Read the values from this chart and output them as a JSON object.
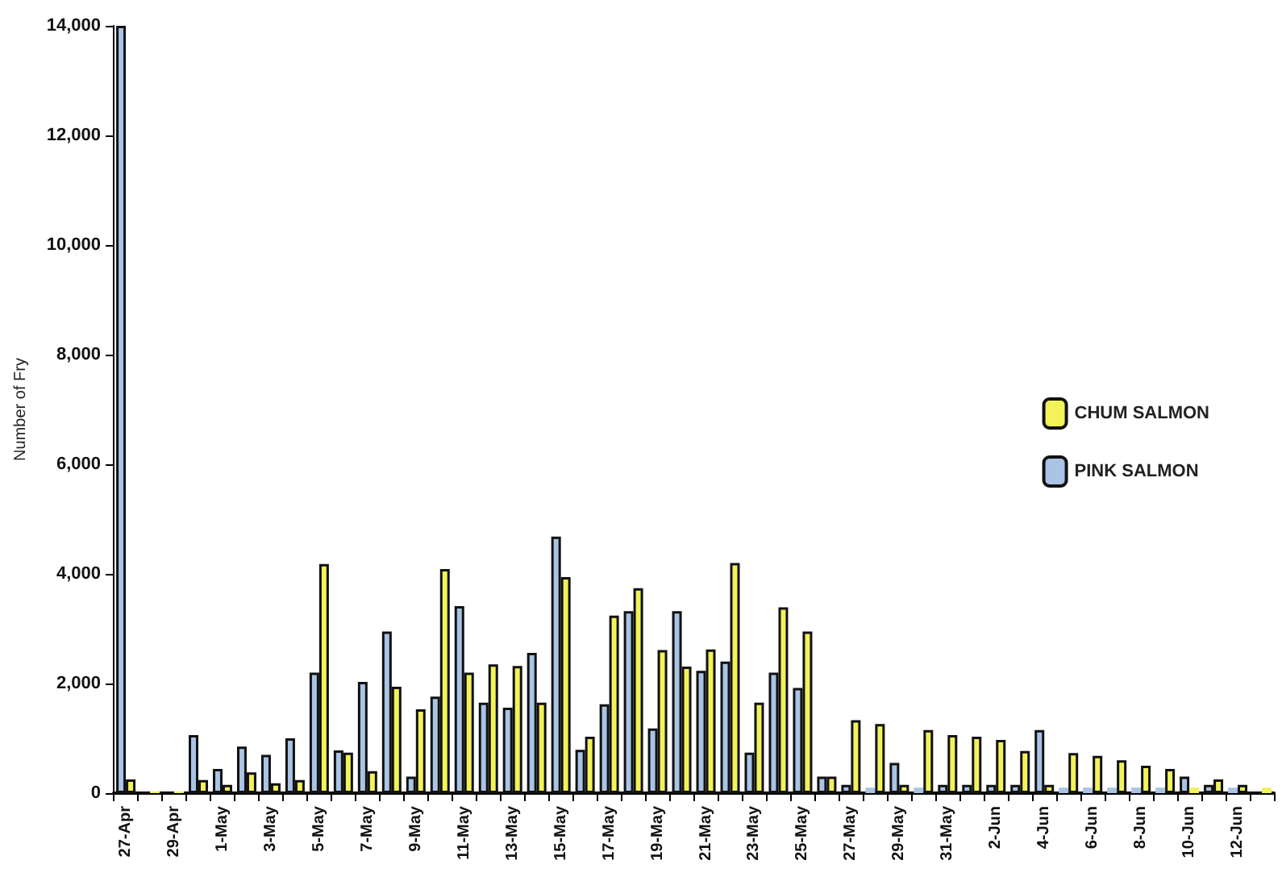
{
  "chart_data": {
    "type": "bar",
    "ylabel": "Number of Fry",
    "categories": [
      "27-Apr",
      null,
      "29-Apr",
      null,
      "1-May",
      null,
      "3-May",
      null,
      "5-May",
      null,
      "7-May",
      null,
      "9-May",
      null,
      "11-May",
      null,
      "13-May",
      null,
      "15-May",
      null,
      "17-May",
      null,
      "19-May",
      null,
      "21-May",
      null,
      "23-May",
      null,
      "25-May",
      null,
      "27-May",
      null,
      "29-May",
      null,
      "31-May",
      null,
      "2-Jun",
      null,
      "4-Jun",
      null,
      "6-Jun",
      null,
      "8-Jun",
      null,
      "10-Jun",
      null,
      "12-Jun",
      null
    ],
    "series": [
      {
        "name": "PINK SALMON",
        "color": "#a9c4e4",
        "values": [
          14000,
          null,
          null,
          1060,
          440,
          850,
          700,
          1000,
          2200,
          780,
          2030,
          2950,
          300,
          1760,
          3410,
          1650,
          1560,
          2560,
          4680,
          790,
          1620,
          3320,
          1180,
          3320,
          2230,
          2400,
          740,
          2200,
          1920,
          300,
          150,
          100,
          550,
          100,
          150,
          150,
          150,
          150,
          1150,
          100,
          100,
          100,
          100,
          100,
          300,
          150,
          100,
          null
        ]
      },
      {
        "name": "CHUM SALMON",
        "color": "#f2f25a",
        "values": [
          250,
          30,
          30,
          240,
          150,
          380,
          180,
          240,
          4180,
          740,
          400,
          1940,
          1530,
          4090,
          2200,
          2350,
          2320,
          1650,
          3940,
          1030,
          3240,
          3740,
          2610,
          2310,
          2620,
          4200,
          1650,
          3390,
          2950,
          300,
          1330,
          1260,
          150,
          1150,
          1060,
          1030,
          970,
          770,
          150,
          730,
          680,
          600,
          500,
          440,
          100,
          250,
          150,
          100
        ]
      }
    ],
    "ylim": [
      0,
      14000
    ],
    "yticks": [
      {
        "value": 0,
        "label": "0"
      },
      {
        "value": 2000,
        "label": "2,000"
      },
      {
        "value": 4000,
        "label": "4,000"
      },
      {
        "value": 6000,
        "label": "6,000"
      },
      {
        "value": 8000,
        "label": "8,000"
      },
      {
        "value": 10000,
        "label": "10,000"
      },
      {
        "value": 12000,
        "label": "12,000"
      },
      {
        "value": 14000,
        "label": "14,000"
      }
    ],
    "grid": false,
    "legend": "right"
  }
}
